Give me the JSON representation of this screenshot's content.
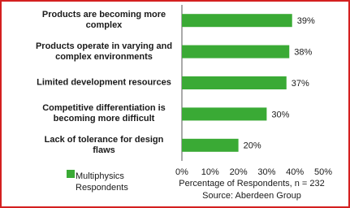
{
  "chart_data": {
    "type": "barh",
    "categories": [
      "Products are becoming more\ncomplex",
      "Products operate in varying and\ncomplex environments",
      "Limited development resources",
      "Competitive differentiation is\nbecoming more difficult",
      "Lack of tolerance for design\nflaws"
    ],
    "series": [
      {
        "name": "Multiphysics\nRespondents",
        "color": "#3aaa35",
        "values": [
          39,
          38,
          37,
          30,
          20
        ],
        "value_labels": [
          "39%",
          "38%",
          "37%",
          "30%",
          "20%"
        ]
      }
    ],
    "xlim": [
      0,
      50
    ],
    "xticks": [
      {
        "value": 0,
        "label": "0%"
      },
      {
        "value": 10,
        "label": "10%"
      },
      {
        "value": 20,
        "label": "20%"
      },
      {
        "value": 30,
        "label": "30%"
      },
      {
        "value": 40,
        "label": "40%"
      },
      {
        "value": 50,
        "label": "50%"
      }
    ],
    "xlabel": "Percentage of Respondents, n = 232",
    "source": "Source: Aberdeen Group"
  }
}
